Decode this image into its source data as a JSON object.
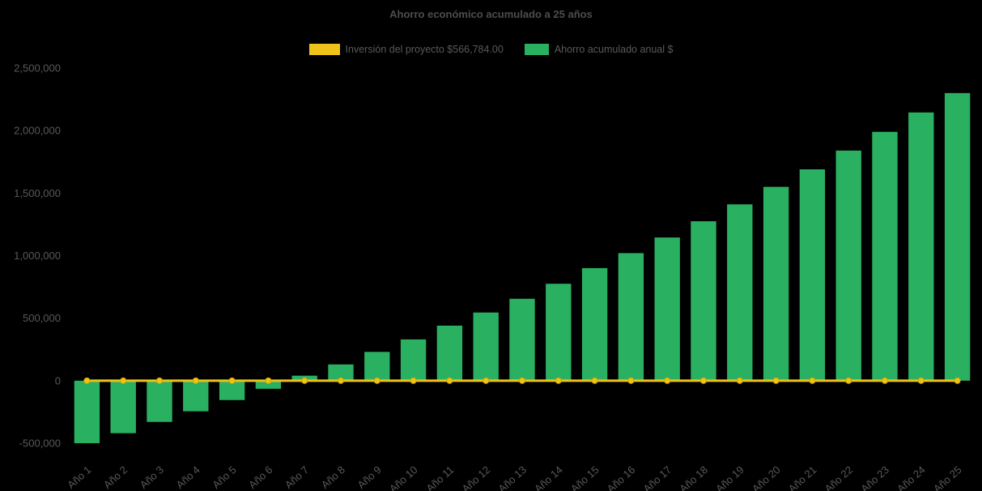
{
  "title": "Ahorro económico acumulado a 25 años",
  "legend": {
    "investment_label": "Inversión del proyecto $566,784.00",
    "savings_label": "Ahorro acumulado anual $"
  },
  "colors": {
    "investment": "#EFC319",
    "savings": "#2AB061",
    "axis_text": "#595959",
    "background": "#000000"
  },
  "chart_data": {
    "type": "bar",
    "title": "Ahorro económico acumulado a 25 años",
    "categories": [
      "Año 1",
      "Año 2",
      "Año 3",
      "Año 4",
      "Año 5",
      "Año 6",
      "Año 7",
      "Año 8",
      "Año 9",
      "Año 10",
      "Año 11",
      "Año 12",
      "Año 13",
      "Año 14",
      "Año 15",
      "Año 16",
      "Año 17",
      "Año 18",
      "Año 19",
      "Año 20",
      "Año 21",
      "Año 22",
      "Año 23",
      "Año 24",
      "Año 25"
    ],
    "series": [
      {
        "name": "Inversión del proyecto $566,784.00",
        "type": "line",
        "color": "#EFC319",
        "values": [
          0,
          0,
          0,
          0,
          0,
          0,
          0,
          0,
          0,
          0,
          0,
          0,
          0,
          0,
          0,
          0,
          0,
          0,
          0,
          0,
          0,
          0,
          0,
          0,
          0
        ]
      },
      {
        "name": "Ahorro acumulado anual $",
        "type": "bar",
        "color": "#2AB061",
        "values": [
          -500000,
          -420000,
          -330000,
          -245000,
          -155000,
          -65000,
          40000,
          130000,
          230000,
          330000,
          440000,
          545000,
          655000,
          775000,
          900000,
          1020000,
          1145000,
          1275000,
          1410000,
          1550000,
          1690000,
          1840000,
          1990000,
          2145000,
          2300000
        ]
      }
    ],
    "xlabel": "",
    "ylabel": "",
    "ylim": [
      -500000,
      2500000
    ],
    "yticks": [
      -500000,
      0,
      500000,
      1000000,
      1500000,
      2000000,
      2500000
    ],
    "grid": false,
    "legend_position": "top"
  }
}
